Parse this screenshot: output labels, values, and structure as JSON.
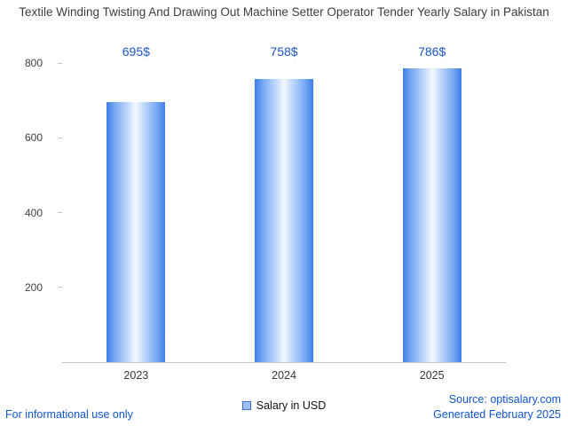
{
  "chart_data": {
    "type": "bar",
    "title": "Textile Winding Twisting And Drawing Out Machine Setter Operator Tender Yearly Salary in Pakistan",
    "categories": [
      "2023",
      "2024",
      "2025"
    ],
    "values": [
      695,
      758,
      786
    ],
    "value_labels": [
      "695$",
      "758$",
      "786$"
    ],
    "series_name": "Salary in USD",
    "xlabel": "",
    "ylabel": "",
    "ylim": [
      0,
      800
    ],
    "yticks": [
      200,
      400,
      600,
      800
    ],
    "grid": false,
    "legend_position": "bottom"
  },
  "footer": {
    "disclaimer": "For informational use only",
    "source": "Source: optisalary.com",
    "generated": "Generated February 2025"
  },
  "colors": {
    "bar_edge": "#3f7de8",
    "bar_center": "#f5faff",
    "value_label": "#1b55cb",
    "link_text": "#1155cc",
    "title_text": "#3d3d3d",
    "axis_text": "#404040",
    "axis_line": "#c9c9c9"
  }
}
